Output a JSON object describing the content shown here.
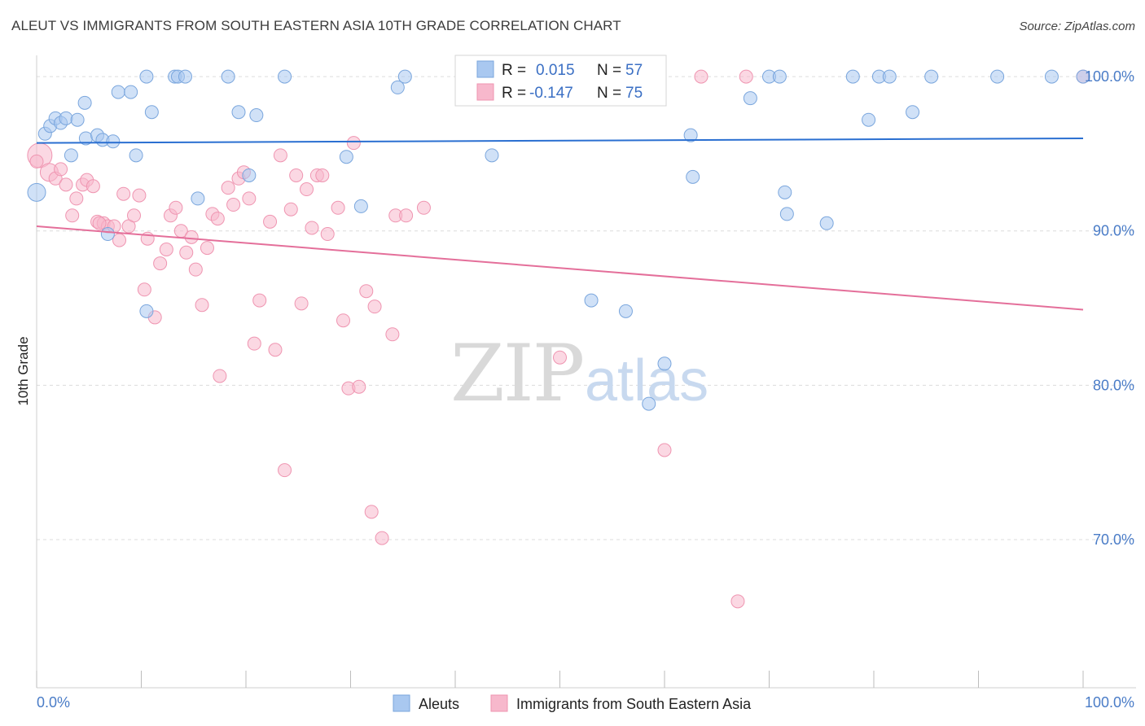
{
  "header": {
    "title": "ALEUT VS IMMIGRANTS FROM SOUTH EASTERN ASIA 10TH GRADE CORRELATION CHART",
    "source": "Source: ZipAtlas.com"
  },
  "watermark": {
    "zip": "ZIP",
    "atlas": "atlas"
  },
  "colors": {
    "aleut_fill": "#a9c8f0",
    "aleut_stroke": "#7aa6dd",
    "aleut_line": "#2a6fd1",
    "sea_fill": "#f7b8cc",
    "sea_stroke": "#ef95b1",
    "sea_line": "#e46f9a",
    "grid": "#dcdcdc",
    "tick_text": "#4a7cc7"
  },
  "stats": {
    "r_label": "R =",
    "n_label": "N =",
    "aleut": {
      "r": "0.015",
      "n": "57"
    },
    "sea": {
      "r": "-0.147",
      "n": "75"
    }
  },
  "chart_data": {
    "type": "scatter",
    "title": "ALEUT VS IMMIGRANTS FROM SOUTH EASTERN ASIA 10TH GRADE CORRELATION CHART",
    "xlabel": "",
    "ylabel": "10th Grade",
    "xlim": [
      0,
      100
    ],
    "ylim": [
      60.4,
      101.8
    ],
    "x_tick_labels": [
      "0.0%",
      "100.0%"
    ],
    "y_ticks": [
      100,
      90,
      80,
      70
    ],
    "y_tick_labels": [
      "100.0%",
      "90.0%",
      "80.0%",
      "70.0%"
    ],
    "grid": true,
    "legend_position": "bottom-center",
    "series": [
      {
        "name": "Aleuts",
        "color": "#a9c8f0",
        "trend": {
          "x": [
            0,
            100
          ],
          "y": [
            95.7,
            96.0
          ]
        },
        "points": [
          [
            0.0,
            92.5,
            2
          ],
          [
            0.8,
            96.3,
            1
          ],
          [
            1.3,
            96.8,
            1
          ],
          [
            1.8,
            97.3,
            1
          ],
          [
            2.3,
            97.0,
            1
          ],
          [
            2.8,
            97.3,
            1
          ],
          [
            3.3,
            94.9,
            1
          ],
          [
            3.9,
            97.2,
            1
          ],
          [
            4.6,
            98.3,
            1
          ],
          [
            4.7,
            96.0,
            1
          ],
          [
            5.8,
            96.2,
            1
          ],
          [
            6.3,
            95.9,
            1
          ],
          [
            7.3,
            95.8,
            1
          ],
          [
            7.8,
            99.0,
            1
          ],
          [
            9.0,
            99.0,
            1
          ],
          [
            9.5,
            94.9,
            1
          ],
          [
            10.5,
            100.0,
            1
          ],
          [
            11.0,
            97.7,
            1
          ],
          [
            13.2,
            100.0,
            1
          ],
          [
            13.5,
            100.0,
            1
          ],
          [
            14.2,
            100.0,
            1
          ],
          [
            15.4,
            92.1,
            1
          ],
          [
            18.3,
            100.0,
            1
          ],
          [
            19.3,
            97.7,
            1
          ],
          [
            20.3,
            93.6,
            1
          ],
          [
            21.0,
            97.5,
            1
          ],
          [
            23.7,
            100.0,
            1
          ],
          [
            29.6,
            94.8,
            1
          ],
          [
            31.0,
            91.6,
            1
          ],
          [
            34.5,
            99.3,
            1
          ],
          [
            35.2,
            100.0,
            1
          ],
          [
            43.5,
            94.9,
            1
          ],
          [
            47.0,
            100.0,
            1
          ],
          [
            53.0,
            85.5,
            1
          ],
          [
            56.3,
            84.8,
            1
          ],
          [
            58.5,
            78.8,
            1
          ],
          [
            60.0,
            81.4,
            1
          ],
          [
            62.5,
            96.2,
            1
          ],
          [
            62.7,
            93.5,
            1
          ],
          [
            68.2,
            98.6,
            1
          ],
          [
            70.0,
            100.0,
            1
          ],
          [
            71.0,
            100.0,
            1
          ],
          [
            71.5,
            92.5,
            1
          ],
          [
            71.7,
            91.1,
            1
          ],
          [
            75.5,
            90.5,
            1
          ],
          [
            78.0,
            100.0,
            1
          ],
          [
            79.5,
            97.2,
            1
          ],
          [
            80.5,
            100.0,
            1
          ],
          [
            81.5,
            100.0,
            1
          ],
          [
            83.7,
            97.7,
            1
          ],
          [
            85.5,
            100.0,
            1
          ],
          [
            91.8,
            100.0,
            1
          ],
          [
            97.0,
            100.0,
            1
          ],
          [
            100.0,
            100.0,
            1
          ],
          [
            6.8,
            89.8,
            1
          ],
          [
            10.5,
            84.8,
            1
          ],
          [
            58.0,
            100.0,
            1
          ]
        ]
      },
      {
        "name": "Immigrants from South Eastern Asia",
        "color": "#f7b8cc",
        "trend": {
          "x": [
            0,
            100
          ],
          "y": [
            90.3,
            84.9
          ]
        },
        "points": [
          [
            0.3,
            94.9,
            3
          ],
          [
            1.2,
            93.8,
            2
          ],
          [
            1.8,
            93.4,
            1
          ],
          [
            2.3,
            94.0,
            1
          ],
          [
            2.8,
            93.0,
            1
          ],
          [
            3.4,
            91.0,
            1
          ],
          [
            3.8,
            92.1,
            1
          ],
          [
            4.4,
            93.0,
            1
          ],
          [
            4.8,
            93.3,
            1
          ],
          [
            5.4,
            92.9,
            1
          ],
          [
            5.8,
            90.6,
            1
          ],
          [
            6.4,
            90.5,
            1
          ],
          [
            6.8,
            90.3,
            1
          ],
          [
            7.4,
            90.3,
            1
          ],
          [
            7.9,
            89.4,
            1
          ],
          [
            8.3,
            92.4,
            1
          ],
          [
            8.8,
            90.3,
            1
          ],
          [
            9.3,
            91.0,
            1
          ],
          [
            9.8,
            92.3,
            1
          ],
          [
            10.3,
            86.2,
            1
          ],
          [
            10.6,
            89.5,
            1
          ],
          [
            11.3,
            84.4,
            1
          ],
          [
            11.8,
            87.9,
            1
          ],
          [
            12.4,
            88.8,
            1
          ],
          [
            12.8,
            91.0,
            1
          ],
          [
            13.3,
            91.5,
            1
          ],
          [
            13.8,
            90.0,
            1
          ],
          [
            14.3,
            88.6,
            1
          ],
          [
            14.8,
            89.6,
            1
          ],
          [
            15.2,
            87.5,
            1
          ],
          [
            15.8,
            85.2,
            1
          ],
          [
            16.3,
            88.9,
            1
          ],
          [
            16.8,
            91.1,
            1
          ],
          [
            17.3,
            90.8,
            1
          ],
          [
            17.5,
            80.6,
            1
          ],
          [
            18.3,
            92.8,
            1
          ],
          [
            18.8,
            91.7,
            1
          ],
          [
            19.3,
            93.4,
            1
          ],
          [
            19.8,
            93.8,
            1
          ],
          [
            20.3,
            92.1,
            1
          ],
          [
            20.8,
            82.7,
            1
          ],
          [
            21.3,
            85.5,
            1
          ],
          [
            22.3,
            90.6,
            1
          ],
          [
            22.8,
            82.3,
            1
          ],
          [
            23.3,
            94.9,
            1
          ],
          [
            23.7,
            74.5,
            1
          ],
          [
            24.3,
            91.4,
            1
          ],
          [
            24.8,
            93.6,
            1
          ],
          [
            25.3,
            85.3,
            1
          ],
          [
            25.8,
            92.7,
            1
          ],
          [
            26.3,
            90.2,
            1
          ],
          [
            26.8,
            93.6,
            1
          ],
          [
            27.3,
            93.6,
            1
          ],
          [
            27.8,
            89.8,
            1
          ],
          [
            28.8,
            91.5,
            1
          ],
          [
            29.3,
            84.2,
            1
          ],
          [
            29.8,
            79.8,
            1
          ],
          [
            30.3,
            95.7,
            1
          ],
          [
            30.8,
            79.9,
            1
          ],
          [
            31.5,
            86.1,
            1
          ],
          [
            32.0,
            71.8,
            1
          ],
          [
            32.3,
            85.1,
            1
          ],
          [
            33.0,
            70.1,
            1
          ],
          [
            34.0,
            83.3,
            1
          ],
          [
            34.3,
            91.0,
            1
          ],
          [
            35.3,
            91.0,
            1
          ],
          [
            37.0,
            91.5,
            1
          ],
          [
            50.0,
            81.8,
            1
          ],
          [
            60.0,
            75.8,
            1
          ],
          [
            63.5,
            100.0,
            1
          ],
          [
            67.0,
            66.0,
            1
          ],
          [
            67.8,
            100.0,
            1
          ],
          [
            100.0,
            100.0,
            1
          ],
          [
            0.0,
            94.5,
            1
          ],
          [
            6.0,
            90.5,
            1
          ]
        ]
      }
    ]
  }
}
